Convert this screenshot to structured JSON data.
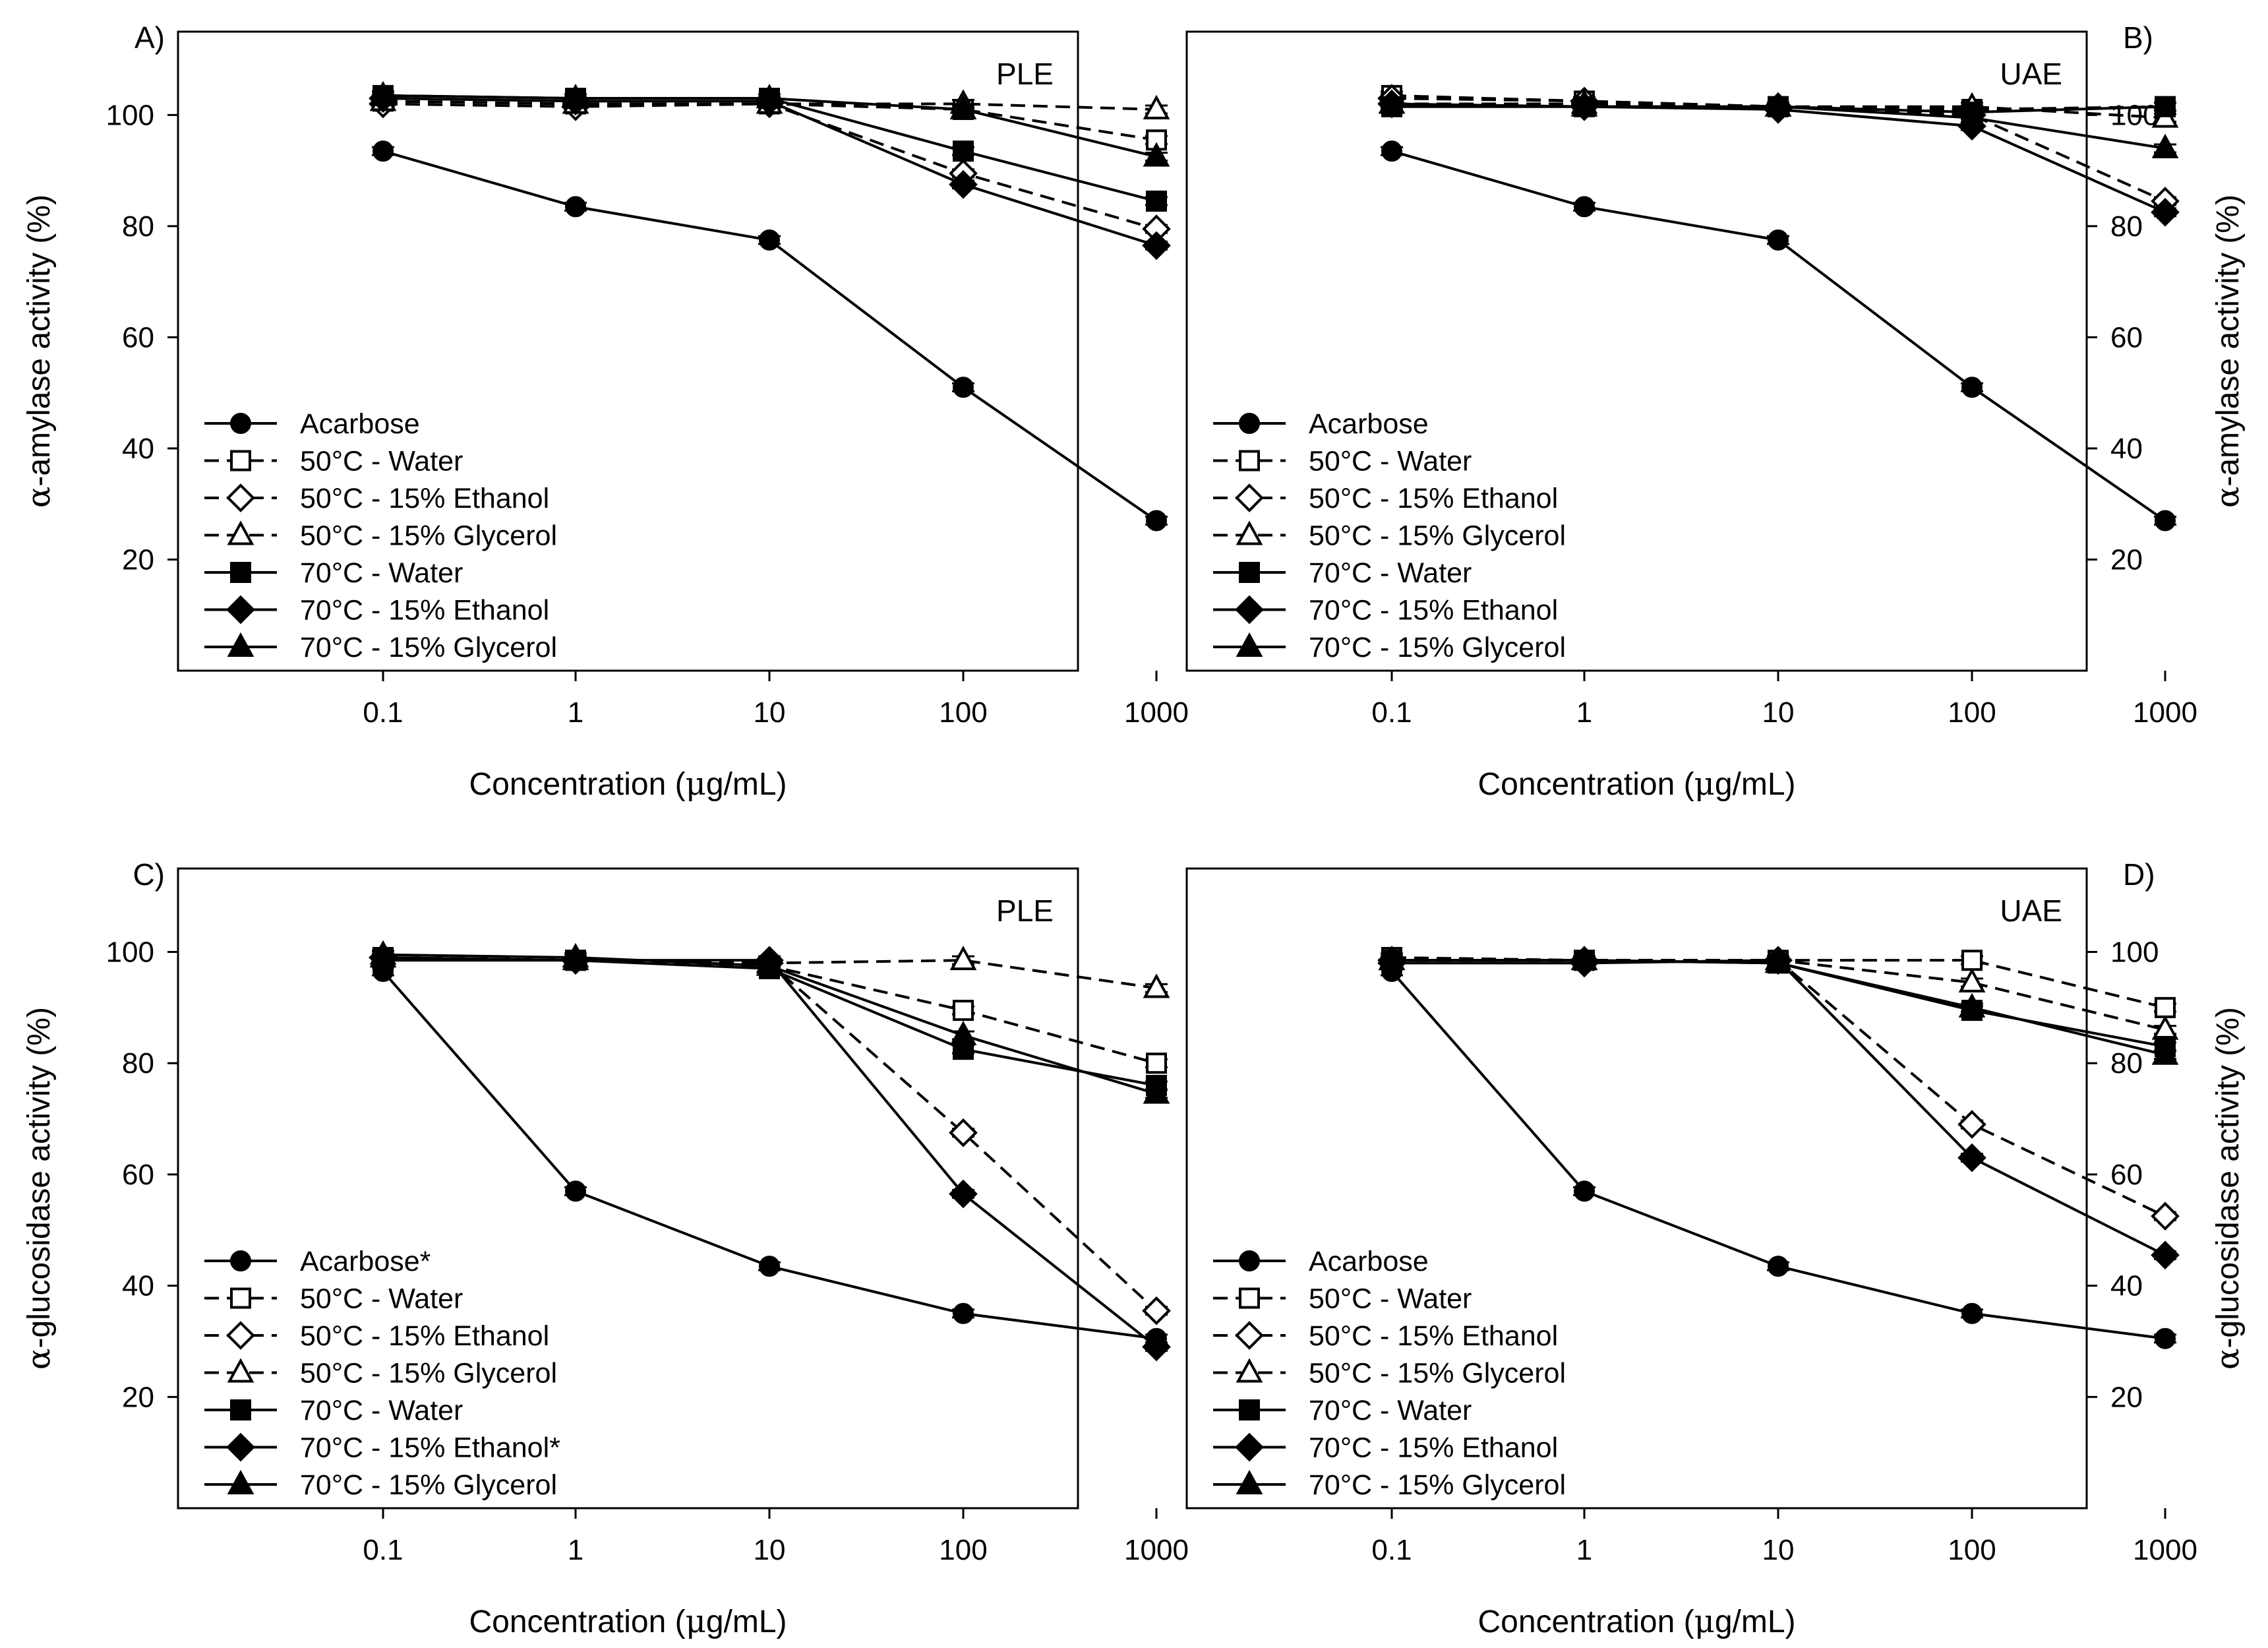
{
  "chart_data": [
    {
      "type": "line",
      "panel_label": "A)",
      "method": "PLE",
      "xscale": "log",
      "x": [
        0.1,
        1,
        10,
        100,
        1000
      ],
      "x_tick_labels": [
        "0.1",
        "1",
        "10",
        "100",
        "1000"
      ],
      "xlabel_prefix": "Concentration (",
      "xlabel_mu": "μ",
      "xlabel_suffix": "g/mL)",
      "ylabel_greek": "α",
      "ylabel_rest": "-amylase activity (%)",
      "ylim": [
        0,
        115
      ],
      "y_ticks": [
        20,
        40,
        60,
        80,
        100
      ],
      "yaxis_side": "left",
      "legend_position": "bottom-left",
      "series": [
        {
          "name": "Acarbose",
          "marker": "circle",
          "filled": true,
          "dashed": false,
          "values": [
            93.5,
            83.5,
            77.5,
            51,
            27
          ]
        },
        {
          "name": "50°C - Water",
          "marker": "square",
          "filled": false,
          "dashed": true,
          "values": [
            102.5,
            102,
            102,
            101,
            95.5
          ]
        },
        {
          "name": "50°C - 15% Ethanol",
          "marker": "diamond",
          "filled": false,
          "dashed": true,
          "values": [
            102,
            101.5,
            102,
            89.5,
            79.5
          ]
        },
        {
          "name": "50°C - 15% Glycerol",
          "marker": "triangle",
          "filled": false,
          "dashed": true,
          "values": [
            102.5,
            102,
            102,
            102,
            101
          ]
        },
        {
          "name": "70°C - Water",
          "marker": "square",
          "filled": true,
          "dashed": false,
          "values": [
            103.5,
            103,
            103,
            93.5,
            84.5
          ]
        },
        {
          "name": "70°C - 15% Ethanol",
          "marker": "diamond",
          "filled": true,
          "dashed": false,
          "values": [
            103,
            102.5,
            102.5,
            87.5,
            76.5
          ]
        },
        {
          "name": "70°C - 15% Glycerol",
          "marker": "triangle",
          "filled": true,
          "dashed": false,
          "values": [
            103.5,
            103,
            103,
            101,
            92.5
          ]
        }
      ]
    },
    {
      "type": "line",
      "panel_label": "B)",
      "method": "UAE",
      "xscale": "log",
      "x": [
        0.1,
        1,
        10,
        100,
        1000
      ],
      "x_tick_labels": [
        "0.1",
        "1",
        "10",
        "100",
        "1000"
      ],
      "xlabel_prefix": "Concentration (",
      "xlabel_mu": "μ",
      "xlabel_suffix": "g/mL)",
      "ylabel_greek": "α",
      "ylabel_rest": "-amylase activity (%)",
      "ylim": [
        0,
        115
      ],
      "y_ticks": [
        20,
        40,
        60,
        80,
        100
      ],
      "yaxis_side": "right",
      "legend_position": "bottom-left",
      "series": [
        {
          "name": "Acarbose",
          "marker": "circle",
          "filled": true,
          "dashed": false,
          "values": [
            93.5,
            83.5,
            77.5,
            51,
            27
          ]
        },
        {
          "name": "50°C - Water",
          "marker": "square",
          "filled": false,
          "dashed": true,
          "values": [
            103.5,
            102.5,
            101.5,
            101,
            101.5
          ]
        },
        {
          "name": "50°C - 15% Ethanol",
          "marker": "diamond",
          "filled": false,
          "dashed": true,
          "values": [
            103,
            102.5,
            101.5,
            100,
            84.5
          ]
        },
        {
          "name": "50°C - 15% Glycerol",
          "marker": "triangle",
          "filled": false,
          "dashed": true,
          "values": [
            102,
            102,
            101.5,
            101.5,
            99.5
          ]
        },
        {
          "name": "70°C - Water",
          "marker": "square",
          "filled": true,
          "dashed": false,
          "values": [
            101.5,
            101.5,
            101.5,
            100.5,
            101.5
          ]
        },
        {
          "name": "70°C - 15% Ethanol",
          "marker": "diamond",
          "filled": true,
          "dashed": false,
          "values": [
            102,
            101.5,
            101,
            98,
            82.5
          ]
        },
        {
          "name": "70°C - 15% Glycerol",
          "marker": "triangle",
          "filled": true,
          "dashed": false,
          "values": [
            102,
            101.5,
            101.5,
            99.5,
            94
          ]
        }
      ]
    },
    {
      "type": "line",
      "panel_label": "C)",
      "method": "PLE",
      "xscale": "log",
      "x": [
        0.1,
        1,
        10,
        100,
        1000
      ],
      "x_tick_labels": [
        "0.1",
        "1",
        "10",
        "100",
        "1000"
      ],
      "xlabel_prefix": "Concentration (",
      "xlabel_mu": "μ",
      "xlabel_suffix": "g/mL)",
      "ylabel_greek": "α",
      "ylabel_rest": "-glucosidase activity (%)",
      "ylim": [
        0,
        115
      ],
      "y_ticks": [
        20,
        40,
        60,
        80,
        100
      ],
      "yaxis_side": "left",
      "legend_position": "bottom-left",
      "series": [
        {
          "name": "Acarbose*",
          "marker": "circle",
          "filled": true,
          "dashed": false,
          "values": [
            96.5,
            57,
            43.5,
            35,
            30.5
          ]
        },
        {
          "name": "50°C - Water",
          "marker": "square",
          "filled": false,
          "dashed": true,
          "values": [
            99,
            98.5,
            97.5,
            89.5,
            80
          ]
        },
        {
          "name": "50°C - 15% Ethanol",
          "marker": "diamond",
          "filled": false,
          "dashed": true,
          "values": [
            99,
            98.5,
            98,
            67.5,
            35.5
          ]
        },
        {
          "name": "50°C - 15% Glycerol",
          "marker": "triangle",
          "filled": false,
          "dashed": true,
          "values": [
            99,
            98.5,
            98,
            98.5,
            93.5
          ]
        },
        {
          "name": "70°C - Water",
          "marker": "square",
          "filled": true,
          "dashed": false,
          "values": [
            98.5,
            98.5,
            97,
            82.5,
            76
          ]
        },
        {
          "name": "70°C - 15% Ethanol*",
          "marker": "diamond",
          "filled": true,
          "dashed": false,
          "values": [
            99,
            98.5,
            98.5,
            56.5,
            29
          ]
        },
        {
          "name": "70°C - 15% Glycerol",
          "marker": "triangle",
          "filled": true,
          "dashed": false,
          "values": [
            99.5,
            99,
            97.5,
            85,
            74.5
          ]
        }
      ]
    },
    {
      "type": "line",
      "panel_label": "D)",
      "method": "UAE",
      "xscale": "log",
      "x": [
        0.1,
        1,
        10,
        100,
        1000
      ],
      "x_tick_labels": [
        "0.1",
        "1",
        "10",
        "100",
        "1000"
      ],
      "xlabel_prefix": "Concentration (",
      "xlabel_mu": "μ",
      "xlabel_suffix": "g/mL)",
      "ylabel_greek": "α",
      "ylabel_rest": "-glucosidase activity (%)",
      "ylim": [
        0,
        115
      ],
      "y_ticks": [
        20,
        40,
        60,
        80,
        100
      ],
      "yaxis_side": "right",
      "legend_position": "bottom-left",
      "series": [
        {
          "name": "Acarbose",
          "marker": "circle",
          "filled": true,
          "dashed": false,
          "values": [
            96.5,
            57,
            43.5,
            35,
            30.5
          ]
        },
        {
          "name": "50°C - Water",
          "marker": "square",
          "filled": false,
          "dashed": true,
          "values": [
            99,
            98.5,
            98.5,
            98.5,
            90
          ]
        },
        {
          "name": "50°C - 15% Ethanol",
          "marker": "diamond",
          "filled": false,
          "dashed": true,
          "values": [
            98.5,
            98.5,
            98.5,
            69,
            52.5
          ]
        },
        {
          "name": "50°C - 15% Glycerol",
          "marker": "triangle",
          "filled": false,
          "dashed": true,
          "values": [
            98.5,
            98.5,
            98.5,
            94.5,
            86
          ]
        },
        {
          "name": "70°C - Water",
          "marker": "square",
          "filled": true,
          "dashed": false,
          "values": [
            98.5,
            98.5,
            98,
            89.5,
            83
          ]
        },
        {
          "name": "70°C - 15% Ethanol",
          "marker": "diamond",
          "filled": true,
          "dashed": false,
          "values": [
            98,
            98,
            98.5,
            63,
            45.5
          ]
        },
        {
          "name": "70°C - 15% Glycerol",
          "marker": "triangle",
          "filled": true,
          "dashed": false,
          "values": [
            98.5,
            98.5,
            98,
            90,
            81.5
          ]
        }
      ]
    }
  ]
}
